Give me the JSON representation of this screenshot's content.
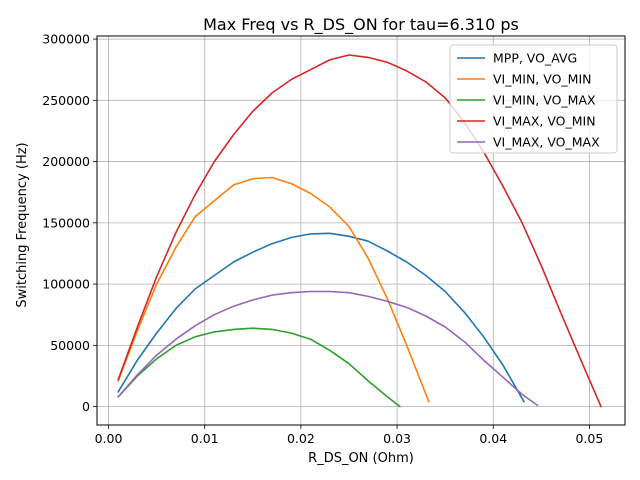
{
  "chart_data": {
    "type": "line",
    "title": "Max Freq vs R_DS_ON for tau=6.310 ps",
    "xlabel": "R_DS_ON (Ohm)",
    "ylabel": "Switching Frequency (Hz)",
    "xlim": [
      -0.0012,
      0.0537
    ],
    "ylim": [
      -15000,
      302500
    ],
    "x_ticks": [
      0.0,
      0.01,
      0.02,
      0.03,
      0.04,
      0.05
    ],
    "x_tick_labels": [
      "0.00",
      "0.01",
      "0.02",
      "0.03",
      "0.04",
      "0.05"
    ],
    "y_ticks": [
      0,
      50000,
      100000,
      150000,
      200000,
      250000,
      300000
    ],
    "y_tick_labels": [
      "0",
      "50000",
      "100000",
      "150000",
      "200000",
      "250000",
      "300000"
    ],
    "grid": true,
    "legend_position": "top-right",
    "series": [
      {
        "name": "MPP, VO_AVG",
        "color": "#1f77b4",
        "x": [
          0.001,
          0.003,
          0.005,
          0.007,
          0.009,
          0.011,
          0.013,
          0.015,
          0.017,
          0.019,
          0.021,
          0.023,
          0.025,
          0.027,
          0.029,
          0.031,
          0.033,
          0.035,
          0.037,
          0.039,
          0.041,
          0.0432
        ],
        "y": [
          12000,
          38000,
          60000,
          80000,
          96000,
          107000,
          118000,
          126000,
          133000,
          138000,
          141000,
          141500,
          139000,
          135000,
          127000,
          118000,
          107000,
          94000,
          77000,
          57000,
          34000,
          4000
        ]
      },
      {
        "name": "VI_MIN, VO_MIN",
        "color": "#ff7f0e",
        "x": [
          0.001,
          0.003,
          0.005,
          0.007,
          0.009,
          0.011,
          0.013,
          0.015,
          0.017,
          0.019,
          0.021,
          0.023,
          0.025,
          0.027,
          0.029,
          0.031,
          0.0333
        ],
        "y": [
          21000,
          62000,
          100000,
          130000,
          155000,
          168000,
          181000,
          186000,
          187000,
          182000,
          174000,
          163000,
          147000,
          121000,
          88000,
          50000,
          4000
        ]
      },
      {
        "name": "VI_MIN, VO_MAX",
        "color": "#2ca02c",
        "x": [
          0.001,
          0.003,
          0.005,
          0.007,
          0.009,
          0.011,
          0.013,
          0.015,
          0.017,
          0.019,
          0.021,
          0.023,
          0.025,
          0.027,
          0.029,
          0.0303
        ],
        "y": [
          8000,
          25000,
          39000,
          50000,
          57000,
          61000,
          63000,
          64000,
          63000,
          60000,
          55000,
          46000,
          35000,
          21000,
          8000,
          0
        ]
      },
      {
        "name": "VI_MAX, VO_MIN",
        "color": "#d62728",
        "x": [
          0.001,
          0.003,
          0.005,
          0.007,
          0.009,
          0.011,
          0.013,
          0.015,
          0.017,
          0.019,
          0.021,
          0.023,
          0.025,
          0.027,
          0.029,
          0.031,
          0.033,
          0.035,
          0.037,
          0.039,
          0.041,
          0.043,
          0.045,
          0.047,
          0.049,
          0.0512
        ],
        "y": [
          22000,
          65000,
          106000,
          142000,
          173000,
          200000,
          222000,
          241000,
          256000,
          267000,
          275000,
          283000,
          287000,
          285000,
          281000,
          274000,
          265000,
          252000,
          232000,
          208000,
          180000,
          150000,
          115000,
          77000,
          40000,
          0
        ]
      },
      {
        "name": "VI_MAX, VO_MAX",
        "color": "#9467bd",
        "x": [
          0.001,
          0.003,
          0.005,
          0.007,
          0.009,
          0.011,
          0.013,
          0.015,
          0.017,
          0.019,
          0.021,
          0.023,
          0.025,
          0.027,
          0.029,
          0.031,
          0.033,
          0.035,
          0.037,
          0.039,
          0.041,
          0.043,
          0.0446
        ],
        "y": [
          8000,
          26000,
          42000,
          55000,
          66000,
          75000,
          82000,
          87000,
          91000,
          93000,
          94000,
          94000,
          93000,
          90000,
          86000,
          81000,
          74000,
          65000,
          53000,
          38000,
          24000,
          10000,
          1000
        ]
      }
    ]
  }
}
